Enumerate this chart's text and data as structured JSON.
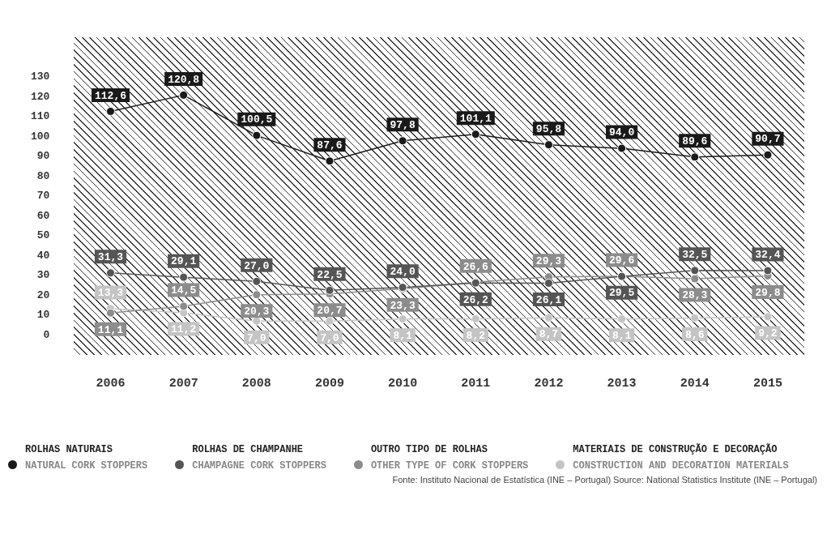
{
  "chart_data": {
    "type": "line",
    "categories": [
      "2006",
      "2007",
      "2008",
      "2009",
      "2010",
      "2011",
      "2012",
      "2013",
      "2014",
      "2015"
    ],
    "ylim": [
      -10,
      150
    ],
    "yticks": [
      0,
      10,
      20,
      30,
      40,
      50,
      60,
      70,
      80,
      90,
      100,
      110,
      120,
      130
    ],
    "grid": false,
    "legend": "bottom",
    "marker": "circle",
    "series": [
      {
        "name": "ROLHAS NATURAIS\nNATURAL CORK STOPPERS",
        "color": "#1a1a1a",
        "values": [
          112.6,
          120.8,
          100.5,
          87.6,
          97.8,
          101.1,
          95.8,
          94.0,
          89.6,
          90.7
        ],
        "value_labels": [
          "112,6",
          "120,8",
          "100,5",
          "87,6",
          "97,8",
          "101,1",
          "95,8",
          "94,0",
          "89,6",
          "90,7"
        ]
      },
      {
        "name": "ROLHAS DE CHAMPANHE\nCHAMPAGNE CORK STOPPERS",
        "color": "#555555",
        "values": [
          31.3,
          29.1,
          27.0,
          22.5,
          24.0,
          26.2,
          26.1,
          29.5,
          32.5,
          32.4
        ],
        "value_labels": [
          "31,3",
          "29,1",
          "27,0",
          "22,5",
          "24,0",
          "26,2",
          "26,1",
          "29,5",
          "32,5",
          "32,4"
        ]
      },
      {
        "name": "OUTRO TIPO DE ROLHAS\nOTHER TYPE OF CORK STOPPERS",
        "color": "#8c8c8c",
        "values": [
          11.1,
          14.5,
          20.3,
          20.7,
          23.3,
          26.6,
          29.3,
          29.6,
          28.3,
          29.8
        ],
        "value_labels": [
          "11,1",
          "14,5",
          "20,3",
          "20,7",
          "23,3",
          "26,6",
          "29,3",
          "29,6",
          "28,3",
          "29,8"
        ]
      },
      {
        "name": "MATERIAIS DE CONSTRUÇÃO E DECORAÇÃO\nCONSTRUCTION AND DECORATION MATERIALS",
        "color": "#c4c4c4",
        "values": [
          13.3,
          11.2,
          7.0,
          7.0,
          8.1,
          8.2,
          8.7,
          8.1,
          8.6,
          9.2
        ],
        "value_labels": [
          "13,3",
          "11,2",
          "7,0",
          "7,0",
          "8,1",
          "8,2",
          "8,7",
          "8,1",
          "8,6",
          "9,2"
        ]
      }
    ],
    "annotations": [
      "Fonte: Instituto Nacional de Estatística (INE – Portugal) Source: National Statistics Institute (INE – Portugal)"
    ]
  }
}
